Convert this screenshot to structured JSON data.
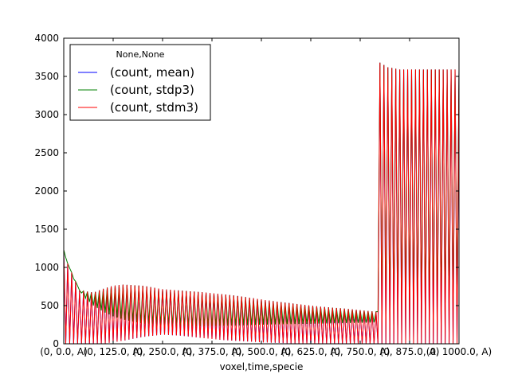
{
  "chart_data": {
    "type": "line",
    "title": "",
    "xlabel": "voxel,time,specie",
    "ylabel": "",
    "ylim": [
      0,
      4000
    ],
    "yticks": [
      0,
      500,
      1000,
      1500,
      2000,
      2500,
      3000,
      3500,
      4000
    ],
    "xlim": [
      0,
      1000
    ],
    "xtick_values": [
      0,
      125,
      250,
      375,
      500,
      625,
      750,
      875,
      1000
    ],
    "xtick_labels": [
      "(0, 0.0, A)",
      "(0, 125.0, A)",
      "(0, 250.0, A)",
      "(0, 375.0, A)",
      "(0, 500.0, A)",
      "(0, 625.0, A)",
      "(0, 750.0, A)",
      "(0, 875.0, A)",
      "(0, 1000.0, A)"
    ],
    "grid": false,
    "legend": {
      "title": "None,None",
      "location": "upper-left"
    },
    "series": [
      {
        "name": "(count, mean)",
        "color": "#0000ff"
      },
      {
        "name": "(count, stdp3)",
        "color": "#008000"
      },
      {
        "name": "(count, stdm3)",
        "color": "#ff0000"
      }
    ],
    "oscillation": {
      "period": 10,
      "upper_envelope": {
        "x": [
          0,
          10,
          40,
          75,
          100,
          125,
          150,
          200,
          250,
          300,
          350,
          400,
          450,
          500,
          550,
          600,
          650,
          700,
          750,
          790,
          791,
          800,
          820,
          850,
          900,
          1000
        ],
        "y": [
          1230,
          1050,
          700,
          670,
          720,
          760,
          775,
          760,
          715,
          695,
          675,
          650,
          620,
          580,
          545,
          515,
          485,
          465,
          440,
          420,
          1870,
          3680,
          3620,
          3590,
          3590,
          3590
        ]
      },
      "lower_envelope": {
        "x": [
          0,
          40,
          100,
          150,
          200,
          250,
          300,
          350,
          400,
          500,
          600,
          700,
          790,
          791,
          820,
          850,
          1000
        ],
        "y": [
          0,
          0,
          0,
          40,
          90,
          120,
          105,
          75,
          50,
          20,
          0,
          0,
          0,
          0,
          0,
          0,
          0
        ]
      },
      "mid_envelope": {
        "x": [
          0,
          25,
          50,
          75,
          100,
          125,
          150,
          175,
          200,
          250,
          300,
          350,
          400,
          450,
          500,
          550,
          600,
          650,
          700,
          750,
          790,
          791,
          800,
          850,
          900,
          1000
        ],
        "y": [
          1200,
          850,
          620,
          500,
          420,
          360,
          320,
          290,
          265,
          240,
          230,
          230,
          235,
          240,
          250,
          255,
          260,
          265,
          270,
          275,
          280,
          420,
          420,
          420,
          420,
          420
        ]
      }
    }
  }
}
